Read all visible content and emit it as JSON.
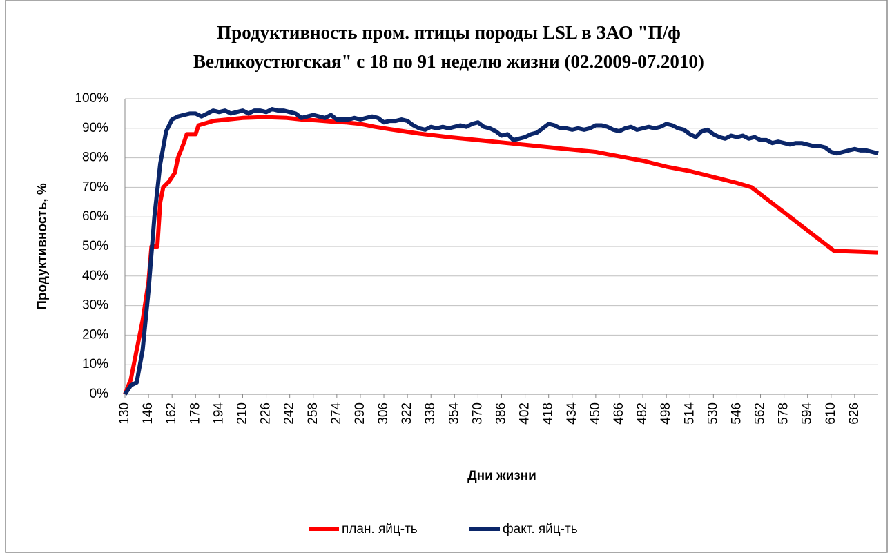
{
  "chart_data": {
    "type": "line",
    "title": [
      "Продуктивность пром. птицы породы LSL  в ЗАО \"П/ф",
      "Великоустюгская\" с 18 по 91 неделю жизни (02.2009-07.2010)"
    ],
    "x_label": "Дни жизни",
    "y_label": "Продуктивность, %",
    "xlim": [
      130,
      642
    ],
    "xticks": [
      130,
      146,
      162,
      178,
      194,
      210,
      226,
      242,
      258,
      274,
      290,
      306,
      322,
      338,
      354,
      370,
      386,
      402,
      418,
      434,
      450,
      466,
      482,
      498,
      514,
      530,
      546,
      562,
      578,
      594,
      610,
      626
    ],
    "ylim": [
      0,
      100
    ],
    "yticks": [
      {
        "value": 0,
        "label": "0%"
      },
      {
        "value": 10,
        "label": "10%"
      },
      {
        "value": 20,
        "label": "20%"
      },
      {
        "value": 30,
        "label": "30%"
      },
      {
        "value": 40,
        "label": "40%"
      },
      {
        "value": 50,
        "label": "50%"
      },
      {
        "value": 60,
        "label": "60%"
      },
      {
        "value": 70,
        "label": "70%"
      },
      {
        "value": 80,
        "label": "80%"
      },
      {
        "value": 90,
        "label": "90%"
      },
      {
        "value": 100,
        "label": "100%"
      }
    ],
    "grid": true,
    "legend": "bottom",
    "series": [
      {
        "name": "план. яйц-ть",
        "color": "#ff0000",
        "x": [
          130,
          134,
          138,
          142,
          146,
          148,
          152,
          154,
          156,
          160,
          164,
          166,
          170,
          172,
          178,
          180,
          190,
          200,
          210,
          220,
          230,
          240,
          250,
          260,
          270,
          280,
          290,
          300,
          310,
          330,
          350,
          370,
          390,
          410,
          430,
          450,
          466,
          482,
          498,
          514,
          530,
          546,
          556,
          612,
          642
        ],
        "values": [
          0,
          5,
          15,
          25,
          38,
          50,
          50,
          65,
          70,
          72,
          75,
          80,
          85,
          88,
          88,
          91,
          92.5,
          93,
          93.5,
          93.7,
          93.7,
          93.5,
          93,
          92.7,
          92.3,
          92,
          91.5,
          90.5,
          89.7,
          88.2,
          87,
          86,
          85,
          84,
          83,
          82,
          80.5,
          79,
          77,
          75.5,
          73.5,
          71.5,
          70,
          48.5,
          48
        ]
      },
      {
        "name": "факт. яйц-ть",
        "color": "#0b2669",
        "x": [
          130,
          134,
          138,
          142,
          146,
          150,
          154,
          158,
          162,
          166,
          170,
          174,
          178,
          182,
          186,
          190,
          194,
          198,
          202,
          206,
          210,
          214,
          218,
          222,
          226,
          230,
          234,
          238,
          242,
          246,
          250,
          254,
          258,
          262,
          266,
          270,
          274,
          278,
          282,
          286,
          290,
          294,
          298,
          302,
          306,
          310,
          314,
          318,
          322,
          326,
          330,
          334,
          338,
          342,
          346,
          350,
          354,
          358,
          362,
          366,
          370,
          374,
          378,
          382,
          386,
          390,
          394,
          398,
          402,
          406,
          410,
          414,
          418,
          422,
          426,
          430,
          434,
          438,
          442,
          446,
          450,
          454,
          458,
          462,
          466,
          470,
          474,
          478,
          482,
          486,
          490,
          494,
          498,
          502,
          506,
          510,
          514,
          518,
          522,
          526,
          530,
          534,
          538,
          542,
          546,
          550,
          554,
          558,
          562,
          566,
          570,
          574,
          578,
          582,
          586,
          590,
          594,
          598,
          602,
          606,
          610,
          614,
          618,
          622,
          626,
          630,
          634,
          638,
          642
        ],
        "values": [
          0,
          3,
          4,
          15,
          35,
          60,
          78,
          89,
          93,
          94,
          94.5,
          95,
          95,
          94,
          95,
          96,
          95.5,
          96,
          95,
          95.5,
          96,
          95,
          96,
          96,
          95.5,
          96.5,
          96,
          96,
          95.5,
          95,
          93.5,
          94,
          94.5,
          94,
          93.5,
          94.5,
          93,
          93,
          93,
          93.5,
          93,
          93.5,
          94,
          93.5,
          92,
          92.5,
          92.5,
          93,
          92.5,
          91,
          90,
          89.5,
          90.5,
          90,
          90.5,
          90,
          90.5,
          91,
          90.5,
          91.5,
          92,
          90.5,
          90,
          89,
          87.5,
          88,
          86,
          86.5,
          87,
          88,
          88.5,
          90,
          91.5,
          91,
          90,
          90,
          89.5,
          90,
          89.5,
          90,
          91,
          91,
          90.5,
          89.5,
          89,
          90,
          90.5,
          89.5,
          90,
          90.5,
          90,
          90.5,
          91.5,
          91,
          90,
          89.5,
          88,
          87,
          89,
          89.5,
          88,
          87,
          86.5,
          87.5,
          87,
          87.5,
          86.5,
          87,
          86,
          86,
          85,
          85.5,
          85,
          84.5,
          85,
          85,
          84.5,
          84,
          84,
          83.5,
          82,
          81.5,
          82,
          82.5,
          83,
          82.5,
          82.5,
          82,
          81.5
        ]
      }
    ]
  }
}
